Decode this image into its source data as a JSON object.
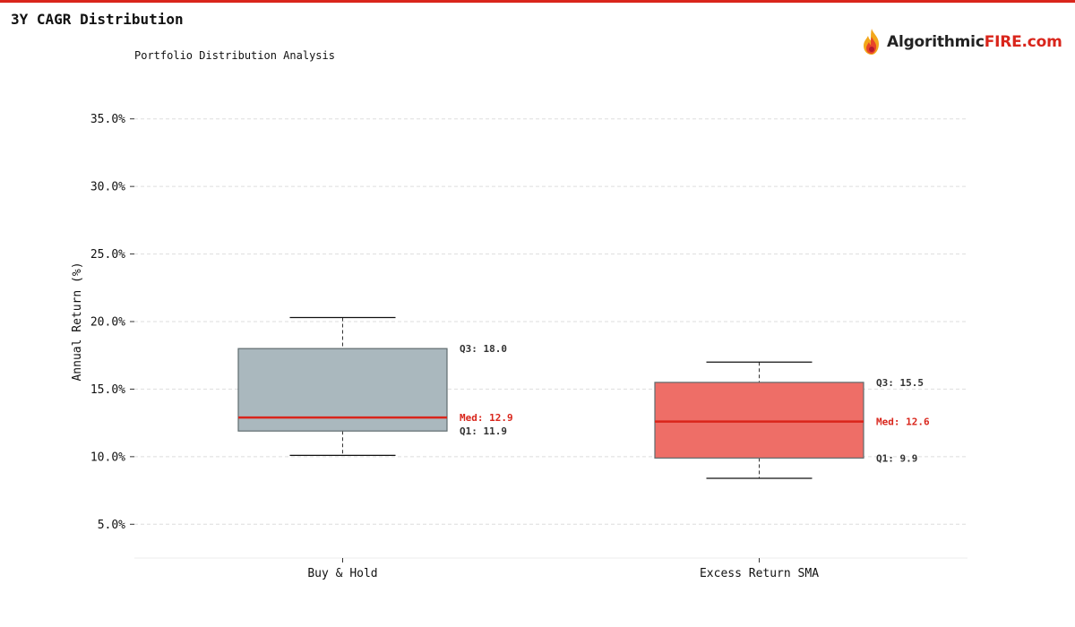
{
  "header": {
    "title": "3Y CAGR Distribution",
    "subtitle": "Portfolio Distribution Analysis",
    "logo_text_main": "Algorithmic",
    "logo_text_accent": "FIRE.com"
  },
  "colors": {
    "accent": "#d9251b",
    "box_buy_hold": "#aab8be",
    "box_sma": "#ee6e67",
    "grid": "#dddddd"
  },
  "chart_data": {
    "type": "box",
    "ylabel": "Annual Return (%)",
    "ylim": [
      2.5,
      37.5
    ],
    "yticks": [
      5,
      10,
      15,
      20,
      25,
      30,
      35
    ],
    "ytick_labels": [
      "5.0%",
      "10.0%",
      "15.0%",
      "20.0%",
      "25.0%",
      "30.0%",
      "35.0%"
    ],
    "grid": true,
    "categories": [
      "Buy & Hold",
      "Excess Return SMA"
    ],
    "series": [
      {
        "name": "Buy & Hold",
        "whisker_low": 10.1,
        "q1": 11.9,
        "median": 12.9,
        "q3": 18.0,
        "whisker_high": 20.3,
        "labels": {
          "q3": "Q3: 18.0",
          "median": "Med: 12.9",
          "q1": "Q1: 11.9"
        }
      },
      {
        "name": "Excess Return SMA",
        "whisker_low": 8.4,
        "q1": 9.9,
        "median": 12.6,
        "q3": 15.5,
        "whisker_high": 17.0,
        "labels": {
          "q3": "Q3: 15.5",
          "median": "Med: 12.6",
          "q1": "Q1: 9.9"
        }
      }
    ]
  }
}
